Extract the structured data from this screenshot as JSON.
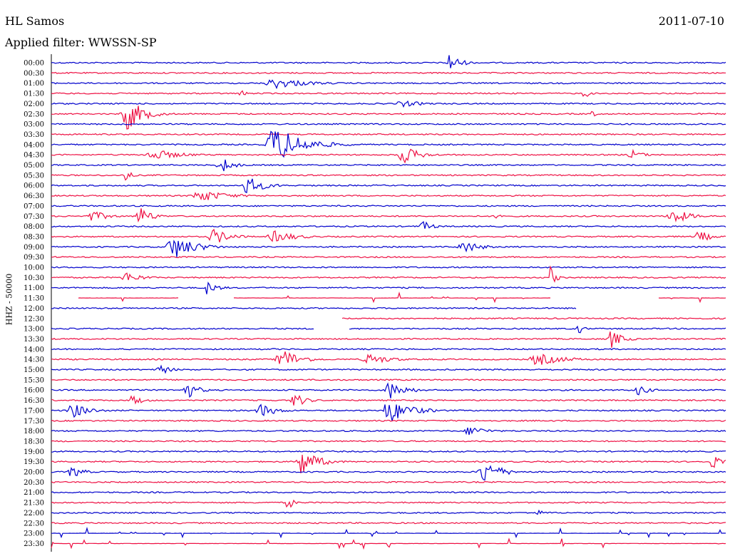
{
  "header": {
    "station": "HL Samos",
    "date": "2011-07-10",
    "filter": "Applied filter: WWSSN-SP"
  },
  "chart_data": {
    "type": "line",
    "title": "HL Samos",
    "ylabel": "HHZ - 50000",
    "colors": [
      "#0000cc",
      "#ee1144"
    ],
    "rows": [
      "00:00",
      "00:30",
      "01:00",
      "01:30",
      "02:00",
      "02:30",
      "03:00",
      "03:30",
      "04:00",
      "04:30",
      "05:00",
      "05:30",
      "06:00",
      "06:30",
      "07:00",
      "07:30",
      "08:00",
      "08:30",
      "09:00",
      "09:30",
      "10:00",
      "10:30",
      "11:00",
      "11:30",
      "12:00",
      "12:30",
      "13:00",
      "13:30",
      "14:00",
      "14:30",
      "15:00",
      "15:30",
      "16:00",
      "16:30",
      "17:00",
      "17:30",
      "18:00",
      "18:30",
      "19:00",
      "19:30",
      "20:00",
      "20:30",
      "21:00",
      "21:30",
      "22:00",
      "22:30",
      "23:00",
      "23:30"
    ],
    "events": [
      {
        "row": "00:00",
        "t": 0.59,
        "amp": 14,
        "dur": 0.02
      },
      {
        "row": "01:00",
        "t": 0.33,
        "amp": 8,
        "dur": 0.06
      },
      {
        "row": "01:30",
        "t": 0.28,
        "amp": 6,
        "dur": 0.01
      },
      {
        "row": "01:30",
        "t": 0.79,
        "amp": 8,
        "dur": 0.01
      },
      {
        "row": "02:00",
        "t": 0.52,
        "amp": 5,
        "dur": 0.04
      },
      {
        "row": "02:30",
        "t": 0.11,
        "amp": 26,
        "dur": 0.03
      },
      {
        "row": "02:30",
        "t": 0.8,
        "amp": 6,
        "dur": 0.01
      },
      {
        "row": "04:00",
        "t": 0.33,
        "amp": 28,
        "dur": 0.05
      },
      {
        "row": "04:30",
        "t": 0.15,
        "amp": 8,
        "dur": 0.05
      },
      {
        "row": "04:30",
        "t": 0.52,
        "amp": 14,
        "dur": 0.03
      },
      {
        "row": "04:30",
        "t": 0.86,
        "amp": 8,
        "dur": 0.02
      },
      {
        "row": "05:00",
        "t": 0.25,
        "amp": 14,
        "dur": 0.02
      },
      {
        "row": "05:30",
        "t": 0.11,
        "amp": 10,
        "dur": 0.01
      },
      {
        "row": "06:00",
        "t": 0.29,
        "amp": 14,
        "dur": 0.03
      },
      {
        "row": "06:30",
        "t": 0.22,
        "amp": 9,
        "dur": 0.05
      },
      {
        "row": "07:30",
        "t": 0.06,
        "amp": 8,
        "dur": 0.03
      },
      {
        "row": "07:30",
        "t": 0.13,
        "amp": 16,
        "dur": 0.02
      },
      {
        "row": "07:30",
        "t": 0.66,
        "amp": 7,
        "dur": 0.01
      },
      {
        "row": "07:30",
        "t": 0.92,
        "amp": 12,
        "dur": 0.03
      },
      {
        "row": "08:00",
        "t": 0.55,
        "amp": 8,
        "dur": 0.02
      },
      {
        "row": "08:30",
        "t": 0.24,
        "amp": 12,
        "dur": 0.03
      },
      {
        "row": "08:30",
        "t": 0.33,
        "amp": 9,
        "dur": 0.04
      },
      {
        "row": "08:30",
        "t": 0.96,
        "amp": 10,
        "dur": 0.02
      },
      {
        "row": "09:00",
        "t": 0.18,
        "amp": 18,
        "dur": 0.04
      },
      {
        "row": "09:00",
        "t": 0.61,
        "amp": 10,
        "dur": 0.03
      },
      {
        "row": "10:30",
        "t": 0.11,
        "amp": 8,
        "dur": 0.03
      },
      {
        "row": "10:30",
        "t": 0.74,
        "amp": 16,
        "dur": 0.01
      },
      {
        "row": "11:00",
        "t": 0.23,
        "amp": 10,
        "dur": 0.02
      },
      {
        "row": "13:00",
        "t": 0.78,
        "amp": 10,
        "dur": 0.01
      },
      {
        "row": "13:30",
        "t": 0.83,
        "amp": 14,
        "dur": 0.02
      },
      {
        "row": "14:30",
        "t": 0.34,
        "amp": 18,
        "dur": 0.03
      },
      {
        "row": "14:30",
        "t": 0.47,
        "amp": 8,
        "dur": 0.04
      },
      {
        "row": "14:30",
        "t": 0.72,
        "amp": 9,
        "dur": 0.05
      },
      {
        "row": "15:00",
        "t": 0.16,
        "amp": 8,
        "dur": 0.02
      },
      {
        "row": "16:00",
        "t": 0.2,
        "amp": 14,
        "dur": 0.02
      },
      {
        "row": "16:00",
        "t": 0.5,
        "amp": 14,
        "dur": 0.03
      },
      {
        "row": "16:00",
        "t": 0.87,
        "amp": 8,
        "dur": 0.02
      },
      {
        "row": "16:30",
        "t": 0.12,
        "amp": 8,
        "dur": 0.02
      },
      {
        "row": "16:30",
        "t": 0.36,
        "amp": 12,
        "dur": 0.02
      },
      {
        "row": "17:00",
        "t": 0.03,
        "amp": 12,
        "dur": 0.03
      },
      {
        "row": "17:00",
        "t": 0.31,
        "amp": 10,
        "dur": 0.03
      },
      {
        "row": "17:00",
        "t": 0.5,
        "amp": 18,
        "dur": 0.04
      },
      {
        "row": "18:00",
        "t": 0.62,
        "amp": 8,
        "dur": 0.03
      },
      {
        "row": "19:30",
        "t": 0.37,
        "amp": 20,
        "dur": 0.03
      },
      {
        "row": "19:30",
        "t": 0.98,
        "amp": 10,
        "dur": 0.02
      },
      {
        "row": "20:00",
        "t": 0.03,
        "amp": 10,
        "dur": 0.02
      },
      {
        "row": "20:00",
        "t": 0.64,
        "amp": 18,
        "dur": 0.03
      },
      {
        "row": "21:30",
        "t": 0.35,
        "amp": 12,
        "dur": 0.01
      },
      {
        "row": "22:00",
        "t": 0.72,
        "amp": 4,
        "dur": 0.02
      }
    ],
    "gaps": [
      {
        "row": "11:30",
        "from": 0.0,
        "to": 0.04
      },
      {
        "row": "11:30",
        "from": 0.19,
        "to": 0.27
      },
      {
        "row": "11:30",
        "from": 0.74,
        "to": 0.9
      },
      {
        "row": "12:00",
        "from": 0.78,
        "to": 1.0
      },
      {
        "row": "12:30",
        "from": 0.0,
        "to": 0.43
      },
      {
        "row": "13:00",
        "from": 0.39,
        "to": 0.44
      }
    ],
    "sparse_rows": [
      "11:30",
      "23:00",
      "23:30"
    ]
  }
}
